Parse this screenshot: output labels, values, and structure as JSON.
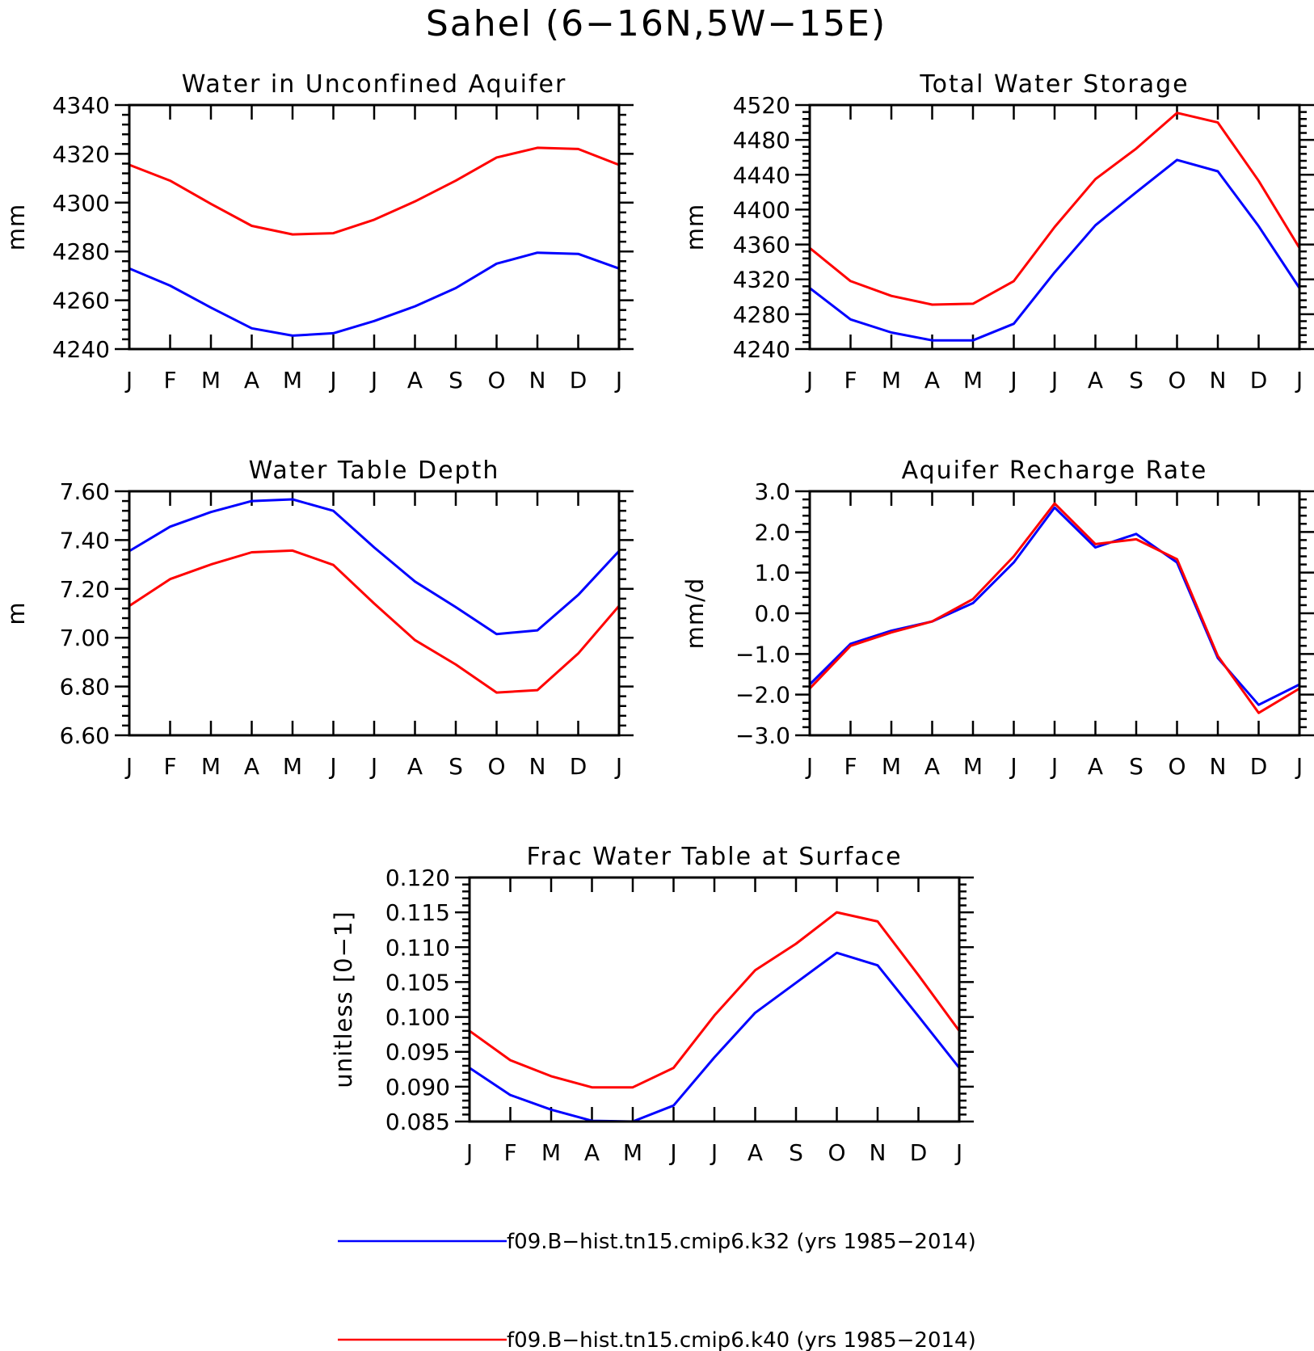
{
  "title": "Sahel (6−16N,5W−15E)",
  "legend": [
    {
      "label": "f09.B−hist.tn15.cmip6.k32 (yrs 1985−2014)",
      "color": "#0000ff"
    },
    {
      "label": "f09.B−hist.tn15.cmip6.k40 (yrs 1985−2014)",
      "color": "#ff0000"
    }
  ],
  "chart_data": [
    {
      "type": "line",
      "title": "Water in Unconfined Aquifer",
      "ylabel": "mm",
      "xlabel": "",
      "x": [
        "J",
        "F",
        "M",
        "A",
        "M",
        "J",
        "J",
        "A",
        "S",
        "O",
        "N",
        "D",
        "J"
      ],
      "ylim": [
        4240,
        4340
      ],
      "yticks": [
        4240,
        4260,
        4280,
        4300,
        4320,
        4340
      ],
      "ytick_labels": [
        "4240",
        "4260",
        "4280",
        "4300",
        "4320",
        "4340"
      ],
      "grid": false,
      "series": [
        {
          "color": "#0000ff",
          "values": [
            4273,
            4266,
            4257,
            4248.5,
            4245.5,
            4246.5,
            4251.5,
            4257.5,
            4265,
            4275,
            4279.5,
            4279,
            4273
          ]
        },
        {
          "color": "#ff0000",
          "values": [
            4315.5,
            4309,
            4299.5,
            4290.5,
            4287,
            4287.5,
            4293,
            4300.5,
            4309,
            4318.5,
            4322.5,
            4322,
            4315.5
          ]
        }
      ]
    },
    {
      "type": "line",
      "title": "Total Water Storage",
      "ylabel": "mm",
      "xlabel": "",
      "x": [
        "J",
        "F",
        "M",
        "A",
        "M",
        "J",
        "J",
        "A",
        "S",
        "O",
        "N",
        "D",
        "J"
      ],
      "ylim": [
        4240,
        4520
      ],
      "yticks": [
        4240,
        4280,
        4320,
        4360,
        4400,
        4440,
        4480,
        4520
      ],
      "ytick_labels": [
        "4240",
        "4280",
        "4320",
        "4360",
        "4400",
        "4440",
        "4480",
        "4520"
      ],
      "grid": false,
      "series": [
        {
          "color": "#0000ff",
          "values": [
            4310,
            4274,
            4259,
            4250,
            4250,
            4269,
            4328,
            4382,
            4420,
            4457,
            4444,
            4381,
            4310
          ]
        },
        {
          "color": "#ff0000",
          "values": [
            4356,
            4318,
            4301,
            4291,
            4292,
            4318,
            4380,
            4435,
            4470,
            4511,
            4500,
            4433,
            4356
          ]
        }
      ]
    },
    {
      "type": "line",
      "title": "Water Table Depth",
      "ylabel": "m",
      "xlabel": "",
      "x": [
        "J",
        "F",
        "M",
        "A",
        "M",
        "J",
        "J",
        "A",
        "S",
        "O",
        "N",
        "D",
        "J"
      ],
      "ylim": [
        6.6,
        7.6
      ],
      "yticks": [
        6.6,
        6.8,
        7.0,
        7.2,
        7.4,
        7.6
      ],
      "ytick_labels": [
        "6.60",
        "6.80",
        "7.00",
        "7.20",
        "7.40",
        "7.60"
      ],
      "grid": false,
      "series": [
        {
          "color": "#0000ff",
          "values": [
            7.355,
            7.455,
            7.515,
            7.56,
            7.567,
            7.52,
            7.37,
            7.23,
            7.125,
            7.015,
            7.03,
            7.175,
            7.355
          ]
        },
        {
          "color": "#ff0000",
          "values": [
            7.13,
            7.24,
            7.3,
            7.35,
            7.357,
            7.298,
            7.14,
            6.99,
            6.89,
            6.775,
            6.785,
            6.935,
            7.13
          ]
        }
      ]
    },
    {
      "type": "line",
      "title": "Aquifer Recharge Rate",
      "ylabel": "mm/d",
      "xlabel": "",
      "x": [
        "J",
        "F",
        "M",
        "A",
        "M",
        "J",
        "J",
        "A",
        "S",
        "O",
        "N",
        "D",
        "J"
      ],
      "ylim": [
        -3.0,
        3.0
      ],
      "yticks": [
        -3,
        -2,
        -1,
        0,
        1,
        2,
        3
      ],
      "ytick_labels": [
        "−3.0",
        "−2.0",
        "−1.0",
        "0.0",
        "1.0",
        "2.0",
        "3.0"
      ],
      "grid": false,
      "series": [
        {
          "color": "#0000ff",
          "values": [
            -1.75,
            -0.75,
            -0.43,
            -0.2,
            0.25,
            1.25,
            2.6,
            1.62,
            1.95,
            1.25,
            -1.1,
            -2.25,
            -1.75
          ]
        },
        {
          "color": "#ff0000",
          "values": [
            -1.85,
            -0.8,
            -0.47,
            -0.2,
            0.35,
            1.4,
            2.7,
            1.7,
            1.82,
            1.33,
            -1.05,
            -2.45,
            -1.85
          ]
        }
      ]
    },
    {
      "type": "line",
      "title": "Frac Water Table at Surface",
      "ylabel": "unitless [0−1]",
      "xlabel": "",
      "x": [
        "J",
        "F",
        "M",
        "A",
        "M",
        "J",
        "J",
        "A",
        "S",
        "O",
        "N",
        "D",
        "J"
      ],
      "ylim": [
        0.085,
        0.12
      ],
      "yticks": [
        0.085,
        0.09,
        0.095,
        0.1,
        0.105,
        0.11,
        0.115,
        0.12
      ],
      "ytick_labels": [
        "0.085",
        "0.090",
        "0.095",
        "0.100",
        "0.105",
        "0.110",
        "0.115",
        "0.120"
      ],
      "grid": false,
      "series": [
        {
          "color": "#0000ff",
          "values": [
            0.0927,
            0.0888,
            0.0867,
            0.0851,
            0.085,
            0.0873,
            0.0942,
            0.1006,
            0.1049,
            0.1092,
            0.1074,
            0.1001,
            0.0927
          ]
        },
        {
          "color": "#ff0000",
          "values": [
            0.098,
            0.0938,
            0.0915,
            0.0899,
            0.0899,
            0.0927,
            0.1002,
            0.1067,
            0.1105,
            0.115,
            0.1137,
            0.106,
            0.098
          ]
        }
      ]
    }
  ]
}
